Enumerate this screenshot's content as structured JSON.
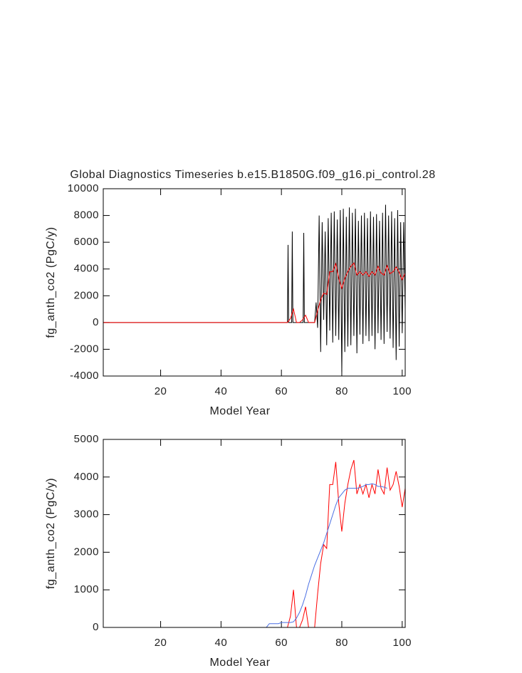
{
  "chart_data": [
    {
      "type": "line",
      "title": "Global Diagnostics Timeseries b.e15.B1850G.f09_g16.pi_control.28",
      "x_label": "Model Year",
      "y_label": "fg_anth_co2 (PgC/y)",
      "xlim": [
        1,
        101
      ],
      "xticks": [
        20,
        40,
        60,
        80,
        100
      ],
      "ylim": [
        -4000,
        10000
      ],
      "yticks": [
        -4000,
        -2000,
        0,
        2000,
        4000,
        6000,
        8000,
        10000
      ],
      "x": [
        1,
        2,
        3,
        4,
        5,
        6,
        7,
        8,
        9,
        10,
        11,
        12,
        13,
        14,
        15,
        16,
        17,
        18,
        19,
        20,
        21,
        22,
        23,
        24,
        25,
        26,
        27,
        28,
        29,
        30,
        31,
        32,
        33,
        34,
        35,
        36,
        37,
        38,
        39,
        40,
        41,
        42,
        43,
        44,
        45,
        46,
        47,
        48,
        49,
        50,
        51,
        52,
        53,
        54,
        55,
        56,
        57,
        58,
        59,
        60,
        61,
        62,
        63,
        64,
        65,
        66,
        67,
        68,
        69,
        70,
        71,
        72,
        73,
        74,
        75,
        76,
        77,
        78,
        79,
        80,
        81,
        82,
        83,
        84,
        85,
        86,
        87,
        88,
        89,
        90,
        91,
        92,
        93,
        94,
        95,
        96,
        97,
        98,
        99,
        100,
        101
      ],
      "series": [
        {
          "color": "#000000",
          "x": [
            1,
            62,
            62.2,
            62.4,
            63.4,
            63.6,
            63.8,
            67.2,
            67.4,
            67.6,
            71,
            71.5,
            72,
            72.5,
            73,
            73.5,
            74,
            74.5,
            75,
            75.5,
            76,
            76.5,
            77,
            77.5,
            78,
            78.5,
            79,
            79.5,
            80,
            80.5,
            81,
            81.5,
            82,
            82.5,
            83,
            83.5,
            84,
            84.5,
            85,
            85.5,
            86,
            86.5,
            87,
            87.5,
            88,
            88.5,
            89,
            89.5,
            90,
            90.5,
            91,
            91.5,
            92,
            92.5,
            93,
            93.5,
            94,
            94.5,
            95,
            95.5,
            96,
            96.5,
            97,
            97.5,
            98,
            98.5,
            99,
            99.5,
            100,
            100.5,
            101
          ],
          "values": [
            0,
            0,
            5800,
            0,
            0,
            6800,
            0,
            0,
            6700,
            0,
            0,
            1500,
            -400,
            8000,
            -2200,
            7500,
            200,
            6800,
            -1700,
            7800,
            -600,
            8200,
            -1500,
            8300,
            -1000,
            7700,
            -1300,
            8400,
            -3700,
            8500,
            -2200,
            7900,
            -1800,
            8600,
            -1700,
            8200,
            -1000,
            8500,
            -2300,
            7600,
            -900,
            8000,
            -1600,
            8200,
            -1000,
            7800,
            -1400,
            8300,
            -1000,
            7900,
            -2000,
            8100,
            -800,
            7600,
            -1300,
            8200,
            -1600,
            8800,
            -700,
            8000,
            -1200,
            8300,
            -1900,
            7800,
            -2800,
            8400,
            -1800,
            7500,
            -800,
            7500,
            1000
          ]
        },
        {
          "color": "#ff0000",
          "values": [
            0,
            0,
            0,
            0,
            0,
            0,
            0,
            0,
            0,
            0,
            0,
            0,
            0,
            0,
            0,
            0,
            0,
            0,
            0,
            0,
            0,
            0,
            0,
            0,
            0,
            0,
            0,
            0,
            0,
            0,
            0,
            0,
            0,
            0,
            0,
            0,
            0,
            0,
            0,
            0,
            0,
            0,
            0,
            0,
            0,
            0,
            0,
            0,
            0,
            0,
            0,
            0,
            0,
            0,
            0,
            0,
            0,
            0,
            0,
            0,
            0,
            0,
            300,
            1000,
            0,
            0,
            200,
            550,
            0,
            0,
            0,
            900,
            1700,
            2200,
            2100,
            3800,
            3800,
            4400,
            3300,
            2550,
            3300,
            3800,
            4200,
            4450,
            3550,
            3800,
            3550,
            3800,
            3450,
            3800,
            3550,
            4200,
            3700,
            3550,
            4250,
            3650,
            3800,
            4150,
            3750,
            3200,
            3700
          ]
        }
      ]
    },
    {
      "type": "line",
      "x_label": "Model Year",
      "y_label": "fg_anth_co2 (PgC/y)",
      "xlim": [
        1,
        101
      ],
      "xticks": [
        20,
        40,
        60,
        80,
        100
      ],
      "ylim": [
        0,
        5000
      ],
      "yticks": [
        0,
        1000,
        2000,
        3000,
        4000,
        5000
      ],
      "x": [
        1,
        2,
        3,
        4,
        5,
        6,
        7,
        8,
        9,
        10,
        11,
        12,
        13,
        14,
        15,
        16,
        17,
        18,
        19,
        20,
        21,
        22,
        23,
        24,
        25,
        26,
        27,
        28,
        29,
        30,
        31,
        32,
        33,
        34,
        35,
        36,
        37,
        38,
        39,
        40,
        41,
        42,
        43,
        44,
        45,
        46,
        47,
        48,
        49,
        50,
        51,
        52,
        53,
        54,
        55,
        56,
        57,
        58,
        59,
        60,
        61,
        62,
        63,
        64,
        65,
        66,
        67,
        68,
        69,
        70,
        71,
        72,
        73,
        74,
        75,
        76,
        77,
        78,
        79,
        80,
        81,
        82,
        83,
        84,
        85,
        86,
        87,
        88,
        89,
        90,
        91,
        92,
        93,
        94,
        95,
        96,
        97,
        98,
        99,
        100,
        101
      ],
      "series": [
        {
          "color": "#ff0000",
          "values": [
            0,
            0,
            0,
            0,
            0,
            0,
            0,
            0,
            0,
            0,
            0,
            0,
            0,
            0,
            0,
            0,
            0,
            0,
            0,
            0,
            0,
            0,
            0,
            0,
            0,
            0,
            0,
            0,
            0,
            0,
            0,
            0,
            0,
            0,
            0,
            0,
            0,
            0,
            0,
            0,
            0,
            0,
            0,
            0,
            0,
            0,
            0,
            0,
            0,
            0,
            0,
            0,
            0,
            0,
            0,
            0,
            0,
            0,
            0,
            0,
            0,
            0,
            300,
            1000,
            0,
            0,
            200,
            550,
            0,
            0,
            0,
            900,
            1700,
            2200,
            2100,
            3800,
            3800,
            4400,
            3300,
            2550,
            3300,
            3800,
            4200,
            4450,
            3550,
            3800,
            3550,
            3800,
            3450,
            3800,
            3550,
            4200,
            3700,
            3550,
            4250,
            3650,
            3800,
            4150,
            3750,
            3200,
            3700
          ]
        },
        {
          "color": "#4a6fe3",
          "values": [
            null,
            null,
            null,
            null,
            null,
            null,
            null,
            null,
            null,
            null,
            null,
            null,
            null,
            null,
            null,
            null,
            null,
            null,
            null,
            null,
            null,
            null,
            null,
            null,
            null,
            null,
            null,
            null,
            null,
            null,
            null,
            null,
            null,
            null,
            null,
            null,
            null,
            null,
            null,
            null,
            null,
            null,
            null,
            null,
            null,
            null,
            null,
            null,
            null,
            null,
            null,
            null,
            null,
            null,
            0,
            100,
            100,
            100,
            100,
            130,
            130,
            130,
            130,
            150,
            250,
            400,
            600,
            850,
            1150,
            1400,
            1650,
            1850,
            2050,
            2250,
            2500,
            2750,
            3000,
            3250,
            3450,
            3550,
            3650,
            3700,
            3700,
            3700,
            3700,
            3720,
            3750,
            3800,
            3800,
            3820,
            3800,
            3750,
            3750,
            3730,
            3700,
            null,
            null,
            null,
            null,
            null,
            null
          ]
        }
      ]
    }
  ]
}
